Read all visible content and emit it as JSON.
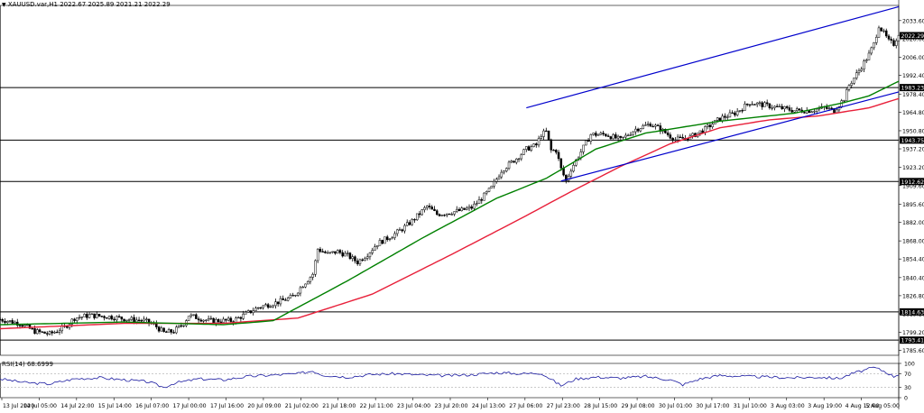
{
  "header": {
    "symbol_line": "XAUUSD.var,H1  2022.67 2025.89 2021.21 2022.29",
    "menu_icon": "triangle-down-icon"
  },
  "rsi_header": {
    "label": "RSI(14) 68.6999"
  },
  "colors": {
    "bull": "#000000",
    "bear": "#000000",
    "ma_fast": "#008000",
    "ma_slow": "#e8203a",
    "trendline": "#0000cc",
    "hline": "#000000",
    "rsi": "#1a1aa0",
    "grid": "#aaaaaa"
  },
  "chart_data": [
    {
      "type": "candlestick",
      "title": "XAUUSD.var,H1",
      "ylim": [
        1782,
        2045
      ],
      "y_ticks": [
        "2033.60",
        "2020.00",
        "2006.00",
        "1992.40",
        "1978.40",
        "1964.80",
        "1950.80",
        "1937.20",
        "1923.20",
        "1909.60",
        "1895.60",
        "1882.00",
        "1868.00",
        "1854.40",
        "1840.40",
        "1826.80",
        "1813.20",
        "1799.20",
        "1785.60"
      ],
      "x_ticks": [
        "13 Jul 2020",
        "14 Jul 05:00",
        "14 Jul 22:00",
        "15 Jul 14:00",
        "16 Jul 07:00",
        "17 Jul 00:00",
        "17 Jul 16:00",
        "20 Jul 09:00",
        "21 Jul 02:00",
        "21 Jul 18:00",
        "22 Jul 11:00",
        "23 Jul 04:00",
        "23 Jul 20:00",
        "24 Jul 13:00",
        "27 Jul 06:00",
        "27 Jul 23:00",
        "28 Jul 15:00",
        "29 Jul 08:00",
        "30 Jul 01:00",
        "30 Jul 17:00",
        "31 Jul 10:00",
        "3 Aug 03:00",
        "3 Aug 19:00",
        "4 Aug 12:00",
        "5 Aug 05:00"
      ],
      "price_path": [
        [
          0,
          1809
        ],
        [
          8,
          1806
        ],
        [
          14,
          1800
        ],
        [
          20,
          1798
        ],
        [
          26,
          1803
        ],
        [
          30,
          1810
        ],
        [
          36,
          1812
        ],
        [
          44,
          1811
        ],
        [
          52,
          1809
        ],
        [
          58,
          1808
        ],
        [
          62,
          1805
        ],
        [
          66,
          1799
        ],
        [
          70,
          1800
        ],
        [
          74,
          1806
        ],
        [
          76,
          1812
        ],
        [
          84,
          1808
        ],
        [
          94,
          1808
        ],
        [
          104,
          1818
        ],
        [
          112,
          1822
        ],
        [
          118,
          1826
        ],
        [
          122,
          1835
        ],
        [
          126,
          1843
        ],
        [
          128,
          1862
        ],
        [
          132,
          1858
        ],
        [
          136,
          1860
        ],
        [
          140,
          1857
        ],
        [
          144,
          1852
        ],
        [
          148,
          1858
        ],
        [
          152,
          1866
        ],
        [
          158,
          1872
        ],
        [
          162,
          1877
        ],
        [
          166,
          1883
        ],
        [
          172,
          1894
        ],
        [
          176,
          1888
        ],
        [
          180,
          1889
        ],
        [
          186,
          1891
        ],
        [
          190,
          1893
        ],
        [
          194,
          1900
        ],
        [
          198,
          1908
        ],
        [
          202,
          1921
        ],
        [
          208,
          1930
        ],
        [
          212,
          1937
        ],
        [
          216,
          1940
        ],
        [
          218,
          1948
        ],
        [
          220,
          1950
        ],
        [
          222,
          1936
        ],
        [
          224,
          1936
        ],
        [
          226,
          1922
        ],
        [
          228,
          1913
        ],
        [
          230,
          1922
        ],
        [
          234,
          1935
        ],
        [
          238,
          1948
        ],
        [
          244,
          1948
        ],
        [
          250,
          1944
        ],
        [
          256,
          1952
        ],
        [
          262,
          1956
        ],
        [
          266,
          1952
        ],
        [
          272,
          1944
        ],
        [
          278,
          1946
        ],
        [
          284,
          1952
        ],
        [
          290,
          1960
        ],
        [
          296,
          1964
        ],
        [
          302,
          1972
        ],
        [
          308,
          1970
        ],
        [
          314,
          1968
        ],
        [
          320,
          1966
        ],
        [
          326,
          1966
        ],
        [
          332,
          1968
        ],
        [
          336,
          1966
        ],
        [
          340,
          1975
        ],
        [
          342,
          1985
        ],
        [
          346,
          1996
        ],
        [
          350,
          2008
        ],
        [
          352,
          2016
        ],
        [
          354,
          2030
        ],
        [
          356,
          2024
        ],
        [
          358,
          2018
        ],
        [
          360,
          2016
        ],
        [
          362,
          2024
        ]
      ],
      "ma_fast_path": [
        [
          0,
          1805
        ],
        [
          50,
          1807
        ],
        [
          90,
          1805
        ],
        [
          110,
          1808
        ],
        [
          140,
          1838
        ],
        [
          170,
          1870
        ],
        [
          200,
          1900
        ],
        [
          220,
          1915
        ],
        [
          240,
          1937
        ],
        [
          260,
          1949
        ],
        [
          290,
          1958
        ],
        [
          320,
          1964
        ],
        [
          340,
          1972
        ],
        [
          350,
          1977
        ],
        [
          362,
          1988
        ]
      ],
      "ma_slow_path": [
        [
          0,
          1802
        ],
        [
          50,
          1806
        ],
        [
          90,
          1806
        ],
        [
          120,
          1810
        ],
        [
          150,
          1828
        ],
        [
          180,
          1856
        ],
        [
          210,
          1885
        ],
        [
          230,
          1905
        ],
        [
          250,
          1924
        ],
        [
          270,
          1941
        ],
        [
          290,
          1953
        ],
        [
          310,
          1959
        ],
        [
          330,
          1962
        ],
        [
          350,
          1968
        ],
        [
          362,
          1975
        ]
      ],
      "trendlines": [
        {
          "from": [
            212,
            1968
          ],
          "to": [
            362,
            2044
          ]
        },
        {
          "from": [
            226,
            1913
          ],
          "to": [
            362,
            1980
          ]
        }
      ],
      "horizontal_levels": [
        {
          "value": 1983.23,
          "label": "1983.23"
        },
        {
          "value": 1943.75,
          "label": "1943.75"
        },
        {
          "value": 1912.62,
          "label": "1912.62"
        },
        {
          "value": 1814.63,
          "label": "1814.63"
        },
        {
          "value": 1793.41,
          "label": "1793.41"
        }
      ],
      "current_price": {
        "value": 2022.29,
        "label": "2022.29"
      }
    },
    {
      "type": "line",
      "title": "RSI(14)",
      "current_value": 68.6999,
      "ylim": [
        0,
        100
      ],
      "y_ticks": [
        "100",
        "70",
        "30",
        "0"
      ],
      "levels": [
        70,
        30
      ],
      "rsi_path": [
        [
          0,
          55
        ],
        [
          10,
          44
        ],
        [
          20,
          40
        ],
        [
          30,
          55
        ],
        [
          40,
          58
        ],
        [
          50,
          52
        ],
        [
          60,
          46
        ],
        [
          66,
          30
        ],
        [
          70,
          42
        ],
        [
          80,
          55
        ],
        [
          90,
          52
        ],
        [
          100,
          62
        ],
        [
          110,
          66
        ],
        [
          120,
          70
        ],
        [
          126,
          78
        ],
        [
          130,
          66
        ],
        [
          140,
          60
        ],
        [
          150,
          68
        ],
        [
          160,
          70
        ],
        [
          170,
          66
        ],
        [
          180,
          64
        ],
        [
          190,
          67
        ],
        [
          200,
          73
        ],
        [
          210,
          70
        ],
        [
          218,
          72
        ],
        [
          226,
          35
        ],
        [
          232,
          55
        ],
        [
          240,
          60
        ],
        [
          250,
          57
        ],
        [
          260,
          62
        ],
        [
          270,
          52
        ],
        [
          275,
          38
        ],
        [
          282,
          55
        ],
        [
          290,
          65
        ],
        [
          300,
          62
        ],
        [
          310,
          60
        ],
        [
          320,
          58
        ],
        [
          330,
          60
        ],
        [
          338,
          56
        ],
        [
          344,
          72
        ],
        [
          352,
          88
        ],
        [
          356,
          78
        ],
        [
          360,
          62
        ],
        [
          362,
          68.7
        ]
      ]
    }
  ]
}
